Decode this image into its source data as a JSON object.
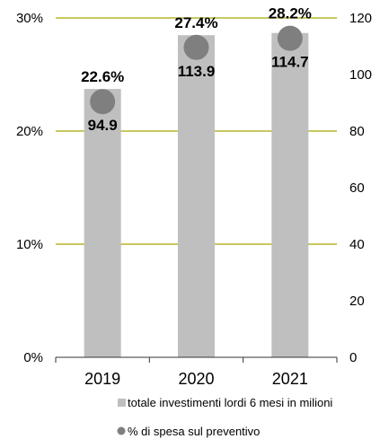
{
  "chart_data": {
    "type": "bar",
    "categories": [
      "2019",
      "2020",
      "2021"
    ],
    "series": [
      {
        "name": "totale investimenti lordi 6 mesi in milioni",
        "kind": "bar",
        "axis": "right",
        "values": [
          94.9,
          113.9,
          114.7
        ],
        "labels": [
          "94.9",
          "113.9",
          "114.7"
        ],
        "color": "#bfbfbf"
      },
      {
        "name": "% di spesa sul preventivo",
        "kind": "point",
        "axis": "left",
        "values": [
          22.6,
          27.4,
          28.2
        ],
        "labels": [
          "22.6%",
          "27.4%",
          "28.2%"
        ],
        "color": "#7f7f7f"
      }
    ],
    "left_axis": {
      "min": 0,
      "max": 30,
      "ticks": [
        0,
        10,
        20,
        30
      ],
      "tick_labels": [
        "0%",
        "10%",
        "20%",
        "30%"
      ]
    },
    "right_axis": {
      "min": 0,
      "max": 120,
      "ticks": [
        0,
        20,
        40,
        60,
        80,
        100,
        120
      ],
      "tick_labels": [
        "0",
        "20",
        "40",
        "60",
        "80",
        "100",
        "120"
      ]
    },
    "gridlines": [
      10,
      20,
      30
    ],
    "grid_color": "#a6a600",
    "legend_position": "bottom"
  }
}
